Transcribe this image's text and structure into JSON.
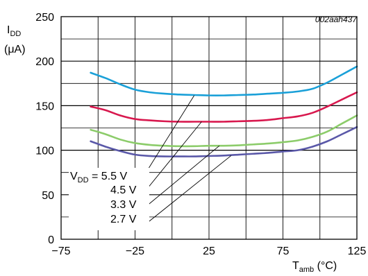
{
  "chart_data": {
    "type": "line",
    "figure_id": "002aah437",
    "ylabel": {
      "main": "I",
      "sub": "DD",
      "unit": "(μA)"
    },
    "xlabel": {
      "main": "T",
      "sub": "amb",
      "unit": " (°C)"
    },
    "xlim": [
      -75,
      125
    ],
    "ylim": [
      0,
      250
    ],
    "x_ticks": [
      -75,
      -25,
      25,
      75,
      125
    ],
    "x_tick_labels": [
      "−75",
      "−25",
      "25",
      "75",
      "125"
    ],
    "y_ticks": [
      0,
      50,
      100,
      150,
      200,
      250
    ],
    "y_tick_labels": [
      "0",
      "50",
      "100",
      "150",
      "200",
      "250"
    ],
    "grid": true,
    "series": [
      {
        "name": "5.5 V",
        "color": "#1aa0d8",
        "x": [
          -55,
          -45,
          -35,
          -25,
          -15,
          -5,
          5,
          15,
          25,
          35,
          45,
          55,
          65,
          75,
          85,
          95,
          105,
          115,
          125
        ],
        "y": [
          187,
          181,
          174,
          168,
          165,
          163.5,
          162.5,
          162,
          161.5,
          161.5,
          162,
          162.5,
          163.5,
          164.5,
          166,
          169,
          176,
          185,
          194
        ]
      },
      {
        "name": "4.5 V",
        "color": "#d8184e",
        "x": [
          -55,
          -45,
          -35,
          -25,
          -15,
          -5,
          5,
          15,
          25,
          35,
          45,
          55,
          65,
          75,
          85,
          95,
          105,
          115,
          125
        ],
        "y": [
          149,
          145,
          139,
          135,
          133.5,
          132.5,
          132,
          132,
          132,
          132,
          132.5,
          133,
          134,
          136,
          138,
          142,
          149,
          157,
          165
        ]
      },
      {
        "name": "3.3 V",
        "color": "#8ccc6a",
        "x": [
          -55,
          -45,
          -35,
          -25,
          -15,
          -5,
          5,
          15,
          25,
          35,
          45,
          55,
          65,
          75,
          85,
          95,
          105,
          115,
          125
        ],
        "y": [
          123,
          118,
          112,
          108,
          106,
          105,
          104.5,
          104.5,
          105,
          105,
          105.5,
          106.5,
          107.5,
          109,
          111,
          115,
          121,
          130,
          139
        ]
      },
      {
        "name": "2.7 V",
        "color": "#5a58a8",
        "x": [
          -55,
          -45,
          -35,
          -25,
          -15,
          -5,
          5,
          15,
          25,
          35,
          45,
          55,
          65,
          75,
          85,
          95,
          105,
          115,
          125
        ],
        "y": [
          110,
          104,
          99,
          95,
          93.5,
          93,
          93,
          93,
          93.5,
          94,
          95,
          96,
          97,
          98.5,
          100,
          104,
          110,
          118,
          126
        ]
      }
    ],
    "annotations": [
      {
        "label": "V",
        "sub": "DD",
        "suffix": " = 5.5 V",
        "series": "5.5 V"
      },
      {
        "label": "4.5 V",
        "series": "4.5 V"
      },
      {
        "label": "3.3 V",
        "series": "3.3 V"
      },
      {
        "label": "2.7 V",
        "series": "2.7 V"
      }
    ]
  }
}
